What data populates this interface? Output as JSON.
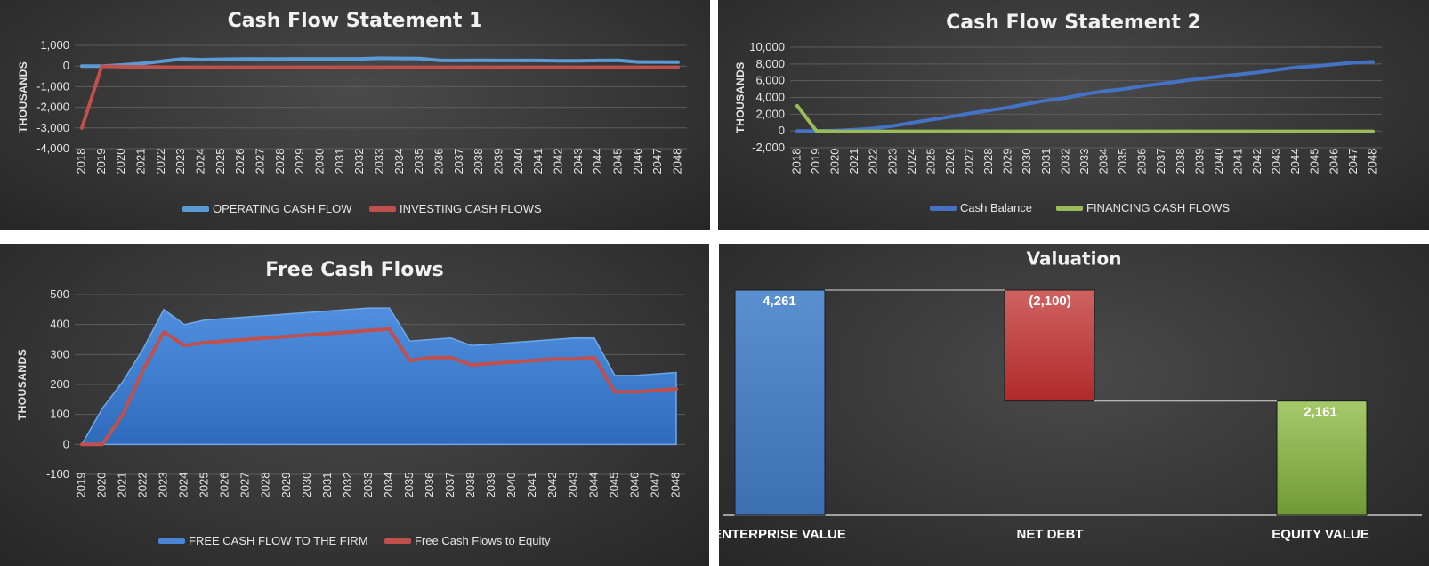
{
  "chart_data": [
    {
      "type": "line",
      "title": "Cash Flow Statement 1",
      "ylabel": "THOUSANDS",
      "ylim": [
        -4000,
        1000
      ],
      "yticks": [
        -4000,
        -3000,
        -2000,
        -1000,
        0,
        1000
      ],
      "ytick_labels": [
        "-4,000",
        "-3,000",
        "-2,000",
        "-1,000",
        "0",
        "1,000"
      ],
      "grid": true,
      "legend": "bottom",
      "x": [
        "2018",
        "2019",
        "2020",
        "2021",
        "2022",
        "2023",
        "2024",
        "2025",
        "2026",
        "2027",
        "2028",
        "2029",
        "2030",
        "2031",
        "2032",
        "2033",
        "2034",
        "2035",
        "2036",
        "2037",
        "2038",
        "2039",
        "2040",
        "2041",
        "2042",
        "2043",
        "2044",
        "2045",
        "2046",
        "2047",
        "2048"
      ],
      "series": [
        {
          "name": "OPERATING CASH FLOW",
          "color": "#5b9bd5",
          "values": [
            0,
            0,
            50,
            120,
            230,
            340,
            310,
            330,
            340,
            340,
            340,
            350,
            350,
            350,
            350,
            380,
            370,
            360,
            280,
            270,
            280,
            270,
            270,
            270,
            260,
            260,
            270,
            280,
            200,
            200,
            190
          ]
        },
        {
          "name": "INVESTING CASH FLOWS",
          "color": "#c0504d",
          "values": [
            -3000,
            -10,
            -30,
            -40,
            -50,
            -60,
            -60,
            -60,
            -60,
            -60,
            -60,
            -60,
            -60,
            -60,
            -60,
            -60,
            -60,
            -60,
            -60,
            -60,
            -60,
            -60,
            -60,
            -60,
            -60,
            -60,
            -60,
            -60,
            -60,
            -60,
            -60
          ]
        }
      ]
    },
    {
      "type": "line",
      "title": "Cash Flow Statement 2",
      "ylabel": "THOUSANDS",
      "ylim": [
        -2000,
        10000
      ],
      "yticks": [
        -2000,
        0,
        2000,
        4000,
        6000,
        8000,
        10000
      ],
      "ytick_labels": [
        "-2,000",
        "0",
        "2,000",
        "4,000",
        "6,000",
        "8,000",
        "10,000"
      ],
      "grid": true,
      "legend": "bottom",
      "x": [
        "2018",
        "2019",
        "2020",
        "2021",
        "2022",
        "2023",
        "2024",
        "2025",
        "2026",
        "2027",
        "2028",
        "2029",
        "2030",
        "2031",
        "2032",
        "2033",
        "2034",
        "2035",
        "2036",
        "2037",
        "2038",
        "2039",
        "2040",
        "2041",
        "2042",
        "2043",
        "2044",
        "2045",
        "2046",
        "2047",
        "2048"
      ],
      "series": [
        {
          "name": "Cash Balance",
          "color": "#4472c4",
          "values": [
            0,
            0,
            50,
            150,
            300,
            600,
            1000,
            1350,
            1700,
            2100,
            2450,
            2800,
            3250,
            3650,
            3950,
            4400,
            4750,
            5000,
            5350,
            5650,
            5950,
            6250,
            6500,
            6750,
            7000,
            7300,
            7600,
            7750,
            7950,
            8150,
            8250
          ]
        },
        {
          "name": "FINANCING CASH FLOWS",
          "color": "#9bbb59",
          "values": [
            3000,
            0,
            -50,
            -50,
            -50,
            -50,
            -50,
            -50,
            -50,
            -50,
            -50,
            -50,
            -50,
            -50,
            -50,
            -50,
            -50,
            -50,
            -50,
            -50,
            -50,
            -50,
            -50,
            -50,
            -50,
            -50,
            -50,
            -50,
            -50,
            -50,
            -50
          ]
        }
      ]
    },
    {
      "type": "area",
      "title": "Free Cash Flows",
      "ylabel": "THOUSANDS",
      "ylim": [
        -100,
        500
      ],
      "yticks": [
        -100,
        0,
        100,
        200,
        300,
        400,
        500
      ],
      "ytick_labels": [
        "-100",
        "0",
        "100",
        "200",
        "300",
        "400",
        "500"
      ],
      "grid": true,
      "legend": "bottom",
      "x": [
        "2019",
        "2020",
        "2021",
        "2022",
        "2023",
        "2024",
        "2025",
        "2026",
        "2027",
        "2028",
        "2029",
        "2030",
        "2031",
        "2032",
        "2033",
        "2034",
        "2035",
        "2036",
        "2037",
        "2038",
        "2039",
        "2040",
        "2041",
        "2042",
        "2043",
        "2044",
        "2045",
        "2046",
        "2047",
        "2048"
      ],
      "series": [
        {
          "name": "FREE CASH FLOW TO THE FIRM",
          "color": "#4a86d4",
          "render": "area",
          "values": [
            0,
            120,
            210,
            320,
            450,
            400,
            415,
            420,
            425,
            430,
            435,
            440,
            445,
            450,
            455,
            455,
            345,
            350,
            355,
            330,
            335,
            340,
            345,
            350,
            355,
            355,
            230,
            230,
            235,
            240
          ]
        },
        {
          "name": "Free Cash Flows to Equity",
          "color": "#c0504d",
          "render": "line",
          "values": [
            0,
            0,
            100,
            250,
            375,
            330,
            340,
            345,
            350,
            355,
            360,
            365,
            370,
            375,
            380,
            385,
            280,
            290,
            290,
            265,
            270,
            275,
            280,
            285,
            285,
            290,
            175,
            175,
            180,
            185
          ]
        }
      ]
    },
    {
      "type": "bar",
      "subtype": "waterfall",
      "title": "Valuation",
      "categories": [
        "ENTERPRISE VALUE",
        "NET DEBT",
        "EQUITY VALUE"
      ],
      "values": [
        4261,
        -2100,
        2161
      ],
      "data_labels": [
        "4,261",
        "(2,100)",
        "2,161"
      ],
      "colors": [
        "#4f81bd",
        "#c0504d",
        "#9bbb59"
      ],
      "ylim": [
        0,
        4261
      ],
      "grid": false,
      "connectors": true
    }
  ]
}
